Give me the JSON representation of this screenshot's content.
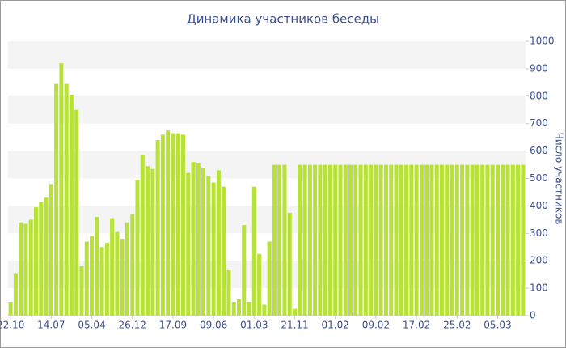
{
  "chart_data": {
    "type": "bar",
    "title": "Динамика участников беседы",
    "y_label": "Число участников",
    "categories": [
      "22.10",
      null,
      null,
      null,
      null,
      null,
      null,
      null,
      "14.07",
      null,
      null,
      null,
      null,
      null,
      null,
      null,
      "05.04",
      null,
      null,
      null,
      null,
      null,
      null,
      null,
      "26.12",
      null,
      null,
      null,
      null,
      null,
      null,
      null,
      "17.09",
      null,
      null,
      null,
      null,
      null,
      null,
      null,
      "09.06",
      null,
      null,
      null,
      null,
      null,
      null,
      null,
      "01.03",
      null,
      null,
      null,
      null,
      null,
      null,
      null,
      "21.11",
      null,
      null,
      null,
      null,
      null,
      null,
      null,
      "01.02",
      null,
      null,
      null,
      null,
      null,
      null,
      null,
      "09.02",
      null,
      null,
      null,
      null,
      null,
      null,
      null,
      "17.02",
      null,
      null,
      null,
      null,
      null,
      null,
      null,
      "25.02",
      null,
      null,
      null,
      null,
      null,
      null,
      null,
      "05.03",
      null,
      null,
      null,
      null,
      null
    ],
    "values": [
      50,
      155,
      340,
      335,
      350,
      395,
      415,
      430,
      480,
      845,
      920,
      845,
      805,
      750,
      180,
      270,
      290,
      360,
      250,
      265,
      355,
      305,
      280,
      340,
      370,
      495,
      585,
      545,
      535,
      640,
      660,
      675,
      665,
      665,
      660,
      520,
      560,
      555,
      540,
      510,
      485,
      530,
      470,
      165,
      50,
      60,
      330,
      50,
      470,
      225,
      40,
      270,
      550,
      550,
      550,
      375,
      25,
      550,
      550,
      550,
      550,
      550,
      550,
      550,
      550,
      550,
      550,
      550,
      550,
      550,
      550,
      550,
      550,
      550,
      550,
      550,
      550,
      550,
      550,
      550,
      550,
      550,
      550,
      550,
      550,
      550,
      550,
      550,
      550,
      550,
      550,
      550,
      550,
      550,
      550,
      550,
      550,
      550,
      550,
      550,
      550,
      550
    ],
    "color": "#b8e23a",
    "ylim": [
      0,
      1000
    ],
    "yticks": [
      0,
      100,
      200,
      300,
      400,
      500,
      600,
      700,
      800,
      900,
      1000
    ],
    "grid": true,
    "y_axis_side": "right"
  }
}
